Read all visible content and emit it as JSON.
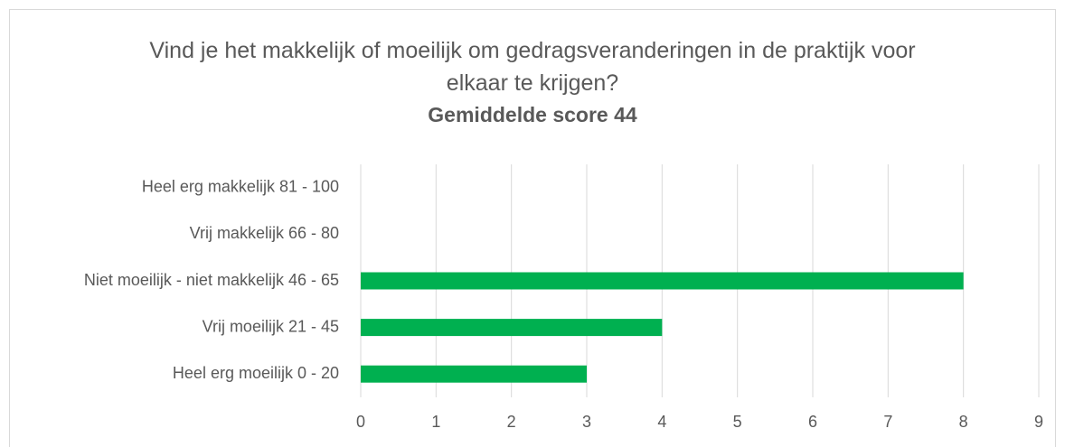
{
  "chart_data": {
    "type": "barh",
    "title": "Vind je het makkelijk of moeilijk om gedragsveranderingen in de praktijk voor elkaar te krijgen?",
    "subtitle": "Gemiddelde score 44",
    "categories": [
      "Heel erg makkelijk 81 - 100",
      "Vrij makkelijk 66 - 80",
      "Niet moeilijk - niet makkelijk 46 - 65",
      "Vrij moeilijk 21 - 45",
      "Heel erg moeilijk 0 - 20"
    ],
    "values": [
      0,
      0,
      8,
      4,
      3
    ],
    "color": "#00b050",
    "xlim": [
      0,
      9
    ],
    "xticks": [
      0,
      1,
      2,
      3,
      4,
      5,
      6,
      7,
      8,
      9
    ],
    "grid": true
  }
}
